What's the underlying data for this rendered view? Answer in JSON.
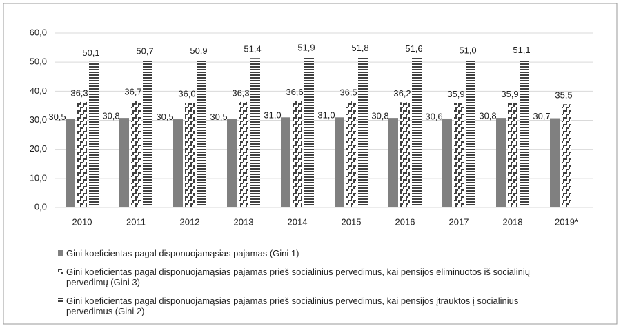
{
  "chart_data": {
    "type": "bar",
    "categories": [
      "2010",
      "2011",
      "2012",
      "2013",
      "2014",
      "2015",
      "2016",
      "2017",
      "2018",
      "2019*"
    ],
    "series": [
      {
        "name": "Gini koeficientas pagal disponuojamąsias pajamas (Gini 1)",
        "color": "#808080",
        "values": [
          30.5,
          30.8,
          30.5,
          30.5,
          31.0,
          31.0,
          30.8,
          30.6,
          30.8,
          30.7
        ],
        "value_labels": [
          "30,5",
          "30,8",
          "30,5",
          "30,5",
          "31,0",
          "31,0",
          "30,8",
          "30,6",
          "30,8",
          "30,7"
        ]
      },
      {
        "name": "Gini koeficientas pagal disponuojamąsias pajamas prieš socialinius pervedimus, kai pensijos eliminuotos iš socialinių pervedimų (Gini 3)",
        "color": "#404040",
        "values": [
          36.3,
          36.7,
          36.0,
          36.3,
          36.6,
          36.5,
          36.2,
          35.9,
          35.9,
          35.5
        ],
        "value_labels": [
          "36,3",
          "36,7",
          "36,0",
          "36,3",
          "36,6",
          "36,5",
          "36,2",
          "35,9",
          "35,9",
          "35,5"
        ]
      },
      {
        "name": "Gini koeficientas pagal disponuojamąsias pajamas prieš socialinius pervedimus, kai pensijos įtrauktos į socialinius pervedimus (Gini 2)",
        "color": "#404040",
        "values": [
          50.1,
          50.7,
          50.9,
          51.4,
          51.9,
          51.8,
          51.6,
          51.0,
          51.1,
          null
        ],
        "value_labels": [
          "50,1",
          "50,7",
          "50,9",
          "51,4",
          "51,9",
          "51,8",
          "51,6",
          "51,0",
          "51,1",
          null
        ]
      }
    ],
    "ylim": [
      0,
      60
    ],
    "yticks": [
      {
        "value": 0,
        "label": "0,0"
      },
      {
        "value": 10,
        "label": "10,0"
      },
      {
        "value": 20,
        "label": "20,0"
      },
      {
        "value": 30,
        "label": "30,0"
      },
      {
        "value": 40,
        "label": "40,0"
      },
      {
        "value": 50,
        "label": "50,0"
      },
      {
        "value": 60,
        "label": "60,0"
      }
    ],
    "grid": true,
    "legend": "bottom"
  }
}
